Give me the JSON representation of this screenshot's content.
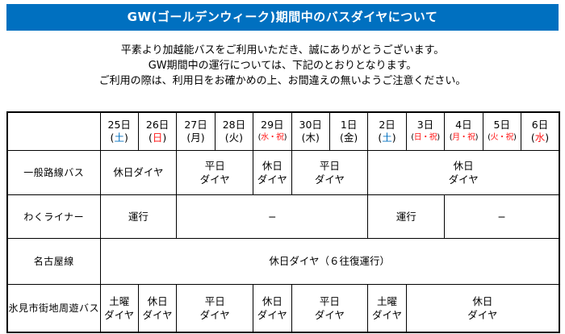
{
  "banner": {
    "title": "GW(ゴールデンウィーク)期間中のバスダイヤについて",
    "bg_color": "#0070c0",
    "text_color": "#ffffff"
  },
  "intro": {
    "lines": [
      "平素より加越能バスをご利用いただき、誠にありがとうございます。",
      "GW期間中の運行については、下記のとおりとなります。",
      "ご利用の際は、利用日をお確かめの上、お間違えの無いようご注意ください。"
    ]
  },
  "colors": {
    "saturday": "#0070c0",
    "holiday": "#ff1a1a",
    "weekday": "#000000"
  },
  "schedule_table": {
    "date_headers": [
      {
        "day": "25日",
        "dow": "土",
        "type": "saturday",
        "small": false
      },
      {
        "day": "26日",
        "dow": "日",
        "type": "holiday",
        "small": false
      },
      {
        "day": "27日",
        "dow": "月",
        "type": "weekday",
        "small": false
      },
      {
        "day": "28日",
        "dow": "火",
        "type": "weekday",
        "small": false
      },
      {
        "day": "29日",
        "dow": "水・祝",
        "type": "holiday",
        "small": true
      },
      {
        "day": "30日",
        "dow": "木",
        "type": "weekday",
        "small": false
      },
      {
        "day": "1日",
        "dow": "金",
        "type": "weekday",
        "small": false
      },
      {
        "day": "2日",
        "dow": "土",
        "type": "saturday",
        "small": false
      },
      {
        "day": "3日",
        "dow": "日・祝",
        "type": "holiday",
        "small": true
      },
      {
        "day": "4日",
        "dow": "月・祝",
        "type": "holiday",
        "small": true
      },
      {
        "day": "5日",
        "dow": "火・祝",
        "type": "holiday",
        "small": true
      },
      {
        "day": "6日",
        "dow": "水",
        "type": "holiday",
        "small": false
      }
    ],
    "rows": [
      {
        "label": "一般路線バス",
        "cells": [
          {
            "span": 2,
            "text": "休日ダイヤ"
          },
          {
            "span": 2,
            "text": "平日\nダイヤ"
          },
          {
            "span": 1,
            "text": "休日\nダイヤ"
          },
          {
            "span": 2,
            "text": "平日\nダイヤ"
          },
          {
            "span": 5,
            "text": "休日\nダイヤ"
          }
        ]
      },
      {
        "label": "わくライナー",
        "cells": [
          {
            "span": 2,
            "text": "運行"
          },
          {
            "span": 5,
            "text": "−"
          },
          {
            "span": 2,
            "text": "運行"
          },
          {
            "span": 3,
            "text": "−"
          }
        ]
      },
      {
        "label": "名古屋線",
        "cells": [
          {
            "span": 12,
            "text": "休日ダイヤ（６往復運行）"
          }
        ]
      },
      {
        "label": "氷見市街地周遊バス",
        "cells": [
          {
            "span": 1,
            "text": "土曜\nダイヤ"
          },
          {
            "span": 1,
            "text": "休日\nダイヤ"
          },
          {
            "span": 2,
            "text": "平日\nダイヤ"
          },
          {
            "span": 1,
            "text": "休日\nダイヤ"
          },
          {
            "span": 2,
            "text": "平日\nダイヤ"
          },
          {
            "span": 1,
            "text": "土曜\nダイヤ"
          },
          {
            "span": 4,
            "text": "休日\nダイヤ"
          }
        ]
      }
    ]
  }
}
